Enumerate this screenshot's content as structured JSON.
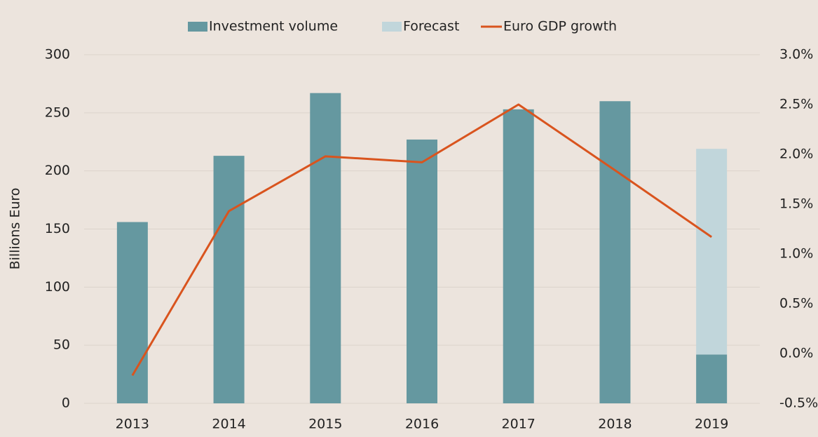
{
  "chart_data": {
    "type": "bar_line",
    "categories": [
      "2013",
      "2014",
      "2015",
      "2016",
      "2017",
      "2018",
      "2019"
    ],
    "ylabel": "Billions Euro",
    "series": [
      {
        "name": "Investment volume",
        "type": "bar",
        "color": "#6598a0",
        "values": [
          156,
          213,
          267,
          227,
          253,
          260,
          42
        ]
      },
      {
        "name": "Forecast",
        "type": "bar",
        "color": "#c1d6db",
        "values": [
          null,
          null,
          null,
          null,
          null,
          null,
          177
        ]
      },
      {
        "name": "Euro GDP growth",
        "type": "line",
        "axis": "y2",
        "color": "#d9541e",
        "values": [
          -0.22,
          1.43,
          1.98,
          1.92,
          2.5,
          1.84,
          1.17
        ]
      }
    ],
    "stacked": true,
    "ylim": [
      0,
      300
    ],
    "yticks": [
      0,
      50,
      100,
      150,
      200,
      250,
      300
    ],
    "y2lim": [
      -0.5,
      3.0
    ],
    "y2ticks": [
      {
        "value": -0.5,
        "label": "-0.5%"
      },
      {
        "value": 0.0,
        "label": "0.0%"
      },
      {
        "value": 0.5,
        "label": "0.5%"
      },
      {
        "value": 1.0,
        "label": "1.0%"
      },
      {
        "value": 1.5,
        "label": "1.5%"
      },
      {
        "value": 2.0,
        "label": "2.0%"
      },
      {
        "value": 2.5,
        "label": "2.5%"
      },
      {
        "value": 3.0,
        "label": "3.0%"
      }
    ],
    "grid": true,
    "legend": "top"
  }
}
